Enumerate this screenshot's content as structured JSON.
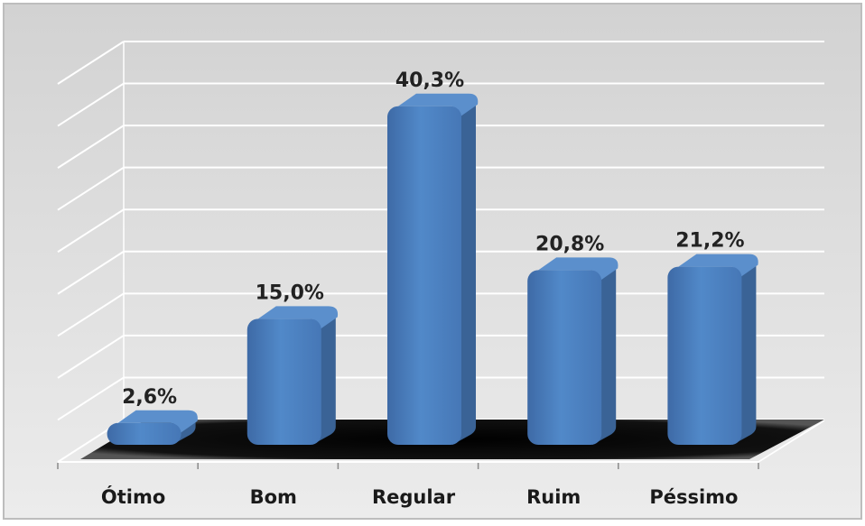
{
  "chart_data": {
    "type": "bar",
    "categories": [
      "Ótimo",
      "Bom",
      "Regular",
      "Ruim",
      "Péssimo"
    ],
    "values": [
      2.6,
      15.0,
      40.3,
      20.8,
      21.2
    ],
    "data_labels": [
      "2,6%",
      "15,0%",
      "40,3%",
      "20,8%",
      "21,2%"
    ],
    "ylim": [
      0,
      45
    ],
    "grid": true,
    "legend": "none",
    "style": "3d-cylinder-bars",
    "colors": {
      "bar": "#4f81bd",
      "bar_dark": "#3a6396",
      "bar_top": "#5b8fcc",
      "plot_bg": "#dedede",
      "grid": "#ffffff",
      "floor": "#000000"
    }
  }
}
